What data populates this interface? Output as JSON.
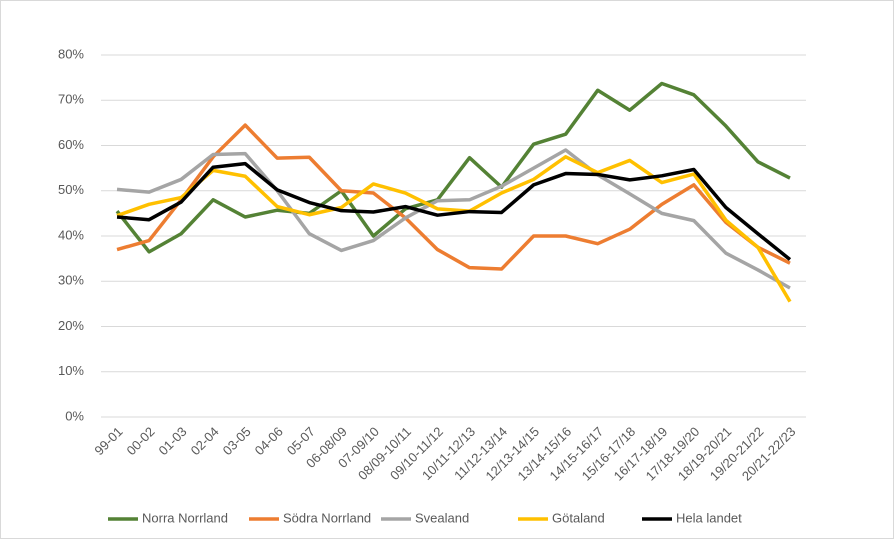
{
  "chart_data": {
    "type": "line",
    "categories": [
      "99-01",
      "00-02",
      "01-03",
      "02-04",
      "03-05",
      "04-06",
      "05-07",
      "06-08/09",
      "07-09/10",
      "08/09-10/11",
      "09/10-11/12",
      "10/11-12/13",
      "11/12-13/14",
      "12/13-14/15",
      "13/14-15/16",
      "14/15-16/17",
      "15/16-17/18",
      "16/17-18/19",
      "17/18-19/20",
      "18/19-20/21",
      "19/20-21/22",
      "20/21-22/23"
    ],
    "series": [
      {
        "name": "Norra Norrland",
        "color": "#548235",
        "values": [
          45.5,
          36.5,
          40.5,
          48,
          44.2,
          45.7,
          45,
          50,
          40,
          46,
          48,
          57.3,
          50.8,
          60.3,
          62.5,
          72.2,
          67.8,
          73.7,
          71.2,
          64.3,
          56.4,
          52.8
        ]
      },
      {
        "name": "Södra Norrland",
        "color": "#ed7d31",
        "values": [
          37,
          39,
          48,
          57.5,
          64.5,
          57.2,
          57.4,
          50,
          49.5,
          44,
          37,
          33,
          32.7,
          40,
          40,
          38.3,
          41.5,
          47,
          51.3,
          43,
          37.5,
          34
        ]
      },
      {
        "name": "Svealand",
        "color": "#a5a5a5",
        "values": [
          50.3,
          49.7,
          52.5,
          58,
          58.2,
          50,
          40.5,
          36.8,
          39,
          44,
          47.8,
          48,
          51,
          55,
          59,
          53.5,
          49.3,
          45,
          43.4,
          36.2,
          32.5,
          28.5
        ]
      },
      {
        "name": "Götaland",
        "color": "#ffc000",
        "values": [
          44.5,
          47,
          48.5,
          54.5,
          53.2,
          46.5,
          44.7,
          46.3,
          51.5,
          49.5,
          46,
          45.5,
          49.5,
          52.5,
          57.5,
          54,
          56.7,
          51.8,
          53.7,
          43.5,
          37.5,
          25.5
        ]
      },
      {
        "name": "Hela landet",
        "color": "#000000",
        "values": [
          44.2,
          43.6,
          47.5,
          55.2,
          56,
          50.2,
          47.4,
          45.6,
          45.3,
          46.5,
          44.6,
          45.4,
          45.2,
          51.3,
          53.8,
          53.6,
          52.4,
          53.3,
          54.7,
          46.3,
          40.5,
          34.8
        ]
      }
    ],
    "ylim": [
      0,
      80
    ],
    "yticks": [
      {
        "value": 0,
        "label": "0%"
      },
      {
        "value": 10,
        "label": "10%"
      },
      {
        "value": 20,
        "label": "20%"
      },
      {
        "value": 30,
        "label": "30%"
      },
      {
        "value": 40,
        "label": "40%"
      },
      {
        "value": 50,
        "label": "50%"
      },
      {
        "value": 60,
        "label": "60%"
      },
      {
        "value": 70,
        "label": "70%"
      },
      {
        "value": 80,
        "label": "80%"
      }
    ],
    "grid": true,
    "legend": "bottom"
  }
}
